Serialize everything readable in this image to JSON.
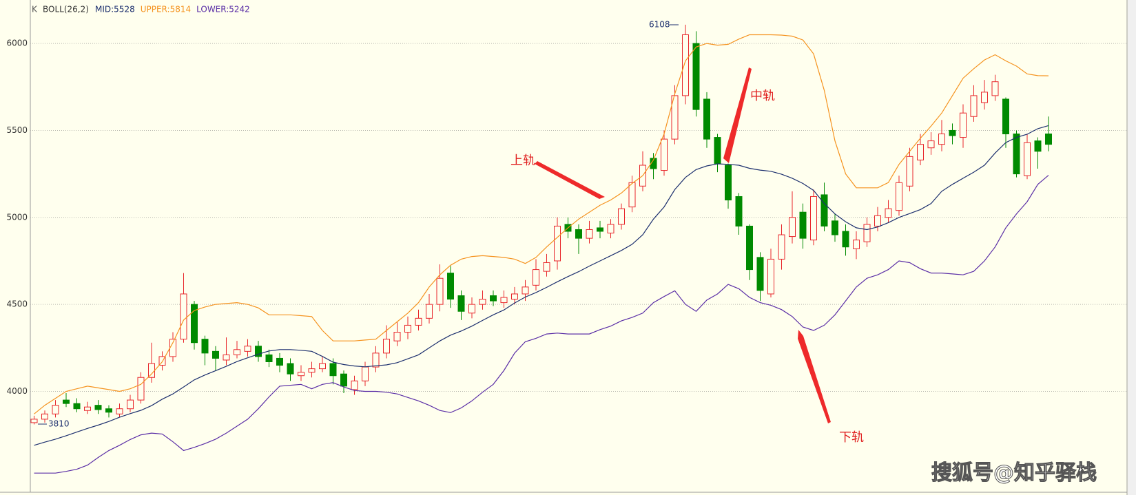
{
  "chart_data": {
    "type": "candlestick",
    "header": {
      "period": "K",
      "indicator": "BOLL(26,2)"
    },
    "ylim": [
      3420,
      6230
    ],
    "yticks": [
      4000,
      4500,
      5000,
      5500,
      6000
    ],
    "grid": true,
    "up_color": "#e8262b",
    "down_color": "#008a00",
    "open": [
      3820,
      3840,
      3870,
      3950,
      3930,
      3890,
      3920,
      3900,
      3870,
      3900,
      3950,
      4080,
      4150,
      4200,
      4300,
      4500,
      4300,
      4230,
      4180,
      4210,
      4230,
      4260,
      4210,
      4190,
      4160,
      4090,
      4110,
      4130,
      4160,
      4100,
      4010,
      4060,
      4140,
      4220,
      4290,
      4340,
      4380,
      4420,
      4500,
      4680,
      4550,
      4450,
      4500,
      4550,
      4510,
      4530,
      4560,
      4610,
      4690,
      4750,
      4960,
      4930,
      4880,
      4940,
      4910,
      4960,
      5060,
      5180,
      5340,
      5270,
      5450,
      5700,
      6000,
      5680,
      5460,
      5300,
      5120,
      4950,
      4770,
      4560,
      4760,
      4890,
      5030,
      4870,
      5130,
      4980,
      4920,
      4820,
      4860,
      4950,
      5000,
      5040,
      5180,
      5330,
      5400,
      5420,
      5500,
      5460,
      5580,
      5660,
      5700,
      5680,
      5480,
      5240,
      5440,
      5480
    ],
    "high": [
      3860,
      3890,
      3950,
      3990,
      3960,
      3940,
      3950,
      3920,
      3930,
      3980,
      4110,
      4280,
      4230,
      4340,
      4680,
      4520,
      4320,
      4260,
      4310,
      4290,
      4300,
      4290,
      4240,
      4220,
      4190,
      4150,
      4170,
      4200,
      4190,
      4120,
      4090,
      4170,
      4260,
      4380,
      4400,
      4430,
      4470,
      4560,
      4730,
      4720,
      4580,
      4540,
      4580,
      4580,
      4580,
      4600,
      4640,
      4760,
      4790,
      5000,
      5000,
      4960,
      4980,
      4980,
      4990,
      5080,
      5240,
      5380,
      5370,
      5500,
      5760,
      6108,
      6070,
      5720,
      5480,
      5310,
      5140,
      4960,
      4800,
      4820,
      4960,
      5150,
      5080,
      5160,
      5200,
      5020,
      4960,
      4920,
      5000,
      5060,
      5100,
      5240,
      5400,
      5480,
      5490,
      5560,
      5540,
      5650,
      5760,
      5790,
      5820,
      5690,
      5500,
      5480,
      5460,
      5580
    ],
    "low": [
      3810,
      3820,
      3850,
      3910,
      3880,
      3870,
      3870,
      3850,
      3850,
      3880,
      3930,
      4050,
      4120,
      4170,
      4280,
      4240,
      4150,
      4120,
      4150,
      4190,
      4200,
      4170,
      4140,
      4110,
      4060,
      4060,
      4080,
      4110,
      4040,
      3990,
      3980,
      4030,
      4110,
      4190,
      4260,
      4300,
      4350,
      4390,
      4460,
      4480,
      4410,
      4420,
      4470,
      4490,
      4480,
      4500,
      4520,
      4580,
      4660,
      4700,
      4880,
      4790,
      4850,
      4880,
      4880,
      4930,
      5030,
      5150,
      5220,
      5240,
      5420,
      5650,
      5580,
      5400,
      5260,
      5050,
      4900,
      4640,
      4520,
      4540,
      4700,
      4850,
      4820,
      4840,
      4920,
      4860,
      4780,
      4760,
      4830,
      4920,
      4970,
      5010,
      5150,
      5300,
      5360,
      5380,
      5420,
      5400,
      5550,
      5620,
      5670,
      5400,
      5230,
      5220,
      5280,
      5380
    ],
    "close": [
      3840,
      3870,
      3920,
      3930,
      3900,
      3910,
      3895,
      3880,
      3900,
      3950,
      4080,
      4160,
      4200,
      4300,
      4560,
      4280,
      4220,
      4190,
      4210,
      4240,
      4260,
      4200,
      4170,
      4150,
      4100,
      4110,
      4130,
      4160,
      4090,
      4030,
      4060,
      4140,
      4220,
      4300,
      4340,
      4380,
      4420,
      4500,
      4650,
      4530,
      4460,
      4500,
      4530,
      4520,
      4540,
      4560,
      4600,
      4700,
      4740,
      4950,
      4920,
      4880,
      4930,
      4920,
      4960,
      5050,
      5200,
      5300,
      5280,
      5450,
      5700,
      6050,
      5620,
      5450,
      5310,
      5100,
      4950,
      4700,
      4580,
      4760,
      4900,
      5000,
      4880,
      5120,
      4950,
      4900,
      4830,
      4870,
      4960,
      5010,
      5050,
      5200,
      5350,
      5420,
      5440,
      5480,
      5470,
      5600,
      5700,
      5720,
      5780,
      5480,
      5250,
      5430,
      5380,
      5420
    ],
    "series": [
      {
        "name": "MID:5528",
        "color": "#1c2f6e",
        "values": [
          3690,
          3708,
          3725,
          3745,
          3766,
          3787,
          3806,
          3827,
          3851,
          3872,
          3891,
          3918,
          3955,
          3985,
          4025,
          4066,
          4094,
          4119,
          4144,
          4171,
          4193,
          4214,
          4232,
          4240,
          4240,
          4236,
          4230,
          4201,
          4168,
          4154,
          4146,
          4141,
          4147,
          4152,
          4165,
          4187,
          4210,
          4250,
          4290,
          4323,
          4347,
          4375,
          4408,
          4440,
          4468,
          4508,
          4542,
          4568,
          4598,
          4630,
          4660,
          4688,
          4720,
          4750,
          4780,
          4810,
          4845,
          4900,
          4990,
          5060,
          5160,
          5230,
          5275,
          5296,
          5308,
          5305,
          5300,
          5282,
          5272,
          5265,
          5248,
          5225,
          5195,
          5155,
          5080,
          5020,
          4975,
          4940,
          4930,
          4945,
          4970,
          5000,
          5022,
          5045,
          5080,
          5150,
          5190,
          5225,
          5260,
          5300,
          5370,
          5430,
          5460,
          5478,
          5510,
          5528
        ]
      },
      {
        "name": "UPPER:5814",
        "color": "#f5921e",
        "values": [
          3870,
          3920,
          3960,
          4000,
          4015,
          4030,
          4020,
          4010,
          4000,
          4015,
          4040,
          4100,
          4170,
          4280,
          4410,
          4465,
          4485,
          4500,
          4505,
          4510,
          4500,
          4480,
          4440,
          4440,
          4440,
          4435,
          4430,
          4350,
          4290,
          4290,
          4290,
          4295,
          4300,
          4350,
          4400,
          4450,
          4510,
          4600,
          4670,
          4725,
          4760,
          4775,
          4780,
          4775,
          4770,
          4760,
          4735,
          4770,
          4830,
          4885,
          4940,
          4990,
          5030,
          5070,
          5100,
          5140,
          5195,
          5240,
          5330,
          5480,
          5710,
          5900,
          5980,
          6000,
          5990,
          5995,
          6025,
          6050,
          6050,
          6050,
          6048,
          6042,
          6020,
          5940,
          5730,
          5440,
          5250,
          5170,
          5170,
          5170,
          5200,
          5305,
          5380,
          5455,
          5525,
          5600,
          5700,
          5800,
          5855,
          5905,
          5935,
          5900,
          5870,
          5825,
          5815,
          5814
        ]
      },
      {
        "name": "LOWER:5242",
        "color": "#5a2ea6",
        "values": [
          3530,
          3530,
          3530,
          3540,
          3552,
          3576,
          3620,
          3660,
          3690,
          3723,
          3750,
          3760,
          3755,
          3710,
          3660,
          3678,
          3700,
          3725,
          3760,
          3800,
          3840,
          3900,
          3968,
          4030,
          4035,
          4040,
          4015,
          4040,
          4050,
          4025,
          4005,
          4000,
          4000,
          3995,
          3985,
          3965,
          3945,
          3920,
          3890,
          3878,
          3905,
          3945,
          3995,
          4040,
          4120,
          4220,
          4285,
          4305,
          4330,
          4335,
          4330,
          4330,
          4330,
          4355,
          4375,
          4405,
          4425,
          4450,
          4510,
          4545,
          4578,
          4500,
          4460,
          4525,
          4560,
          4615,
          4590,
          4540,
          4510,
          4495,
          4470,
          4430,
          4370,
          4350,
          4380,
          4440,
          4520,
          4600,
          4650,
          4670,
          4700,
          4750,
          4740,
          4705,
          4680,
          4680,
          4675,
          4670,
          4690,
          4750,
          4830,
          4940,
          5020,
          5090,
          5190,
          5242
        ]
      }
    ],
    "annotations": {
      "max_label": "6108",
      "min_label": "3810",
      "upper_label": "上轨",
      "mid_label": "中轨",
      "lower_label": "下轨",
      "watermark": "搜狐号@知乎驿栈"
    }
  }
}
